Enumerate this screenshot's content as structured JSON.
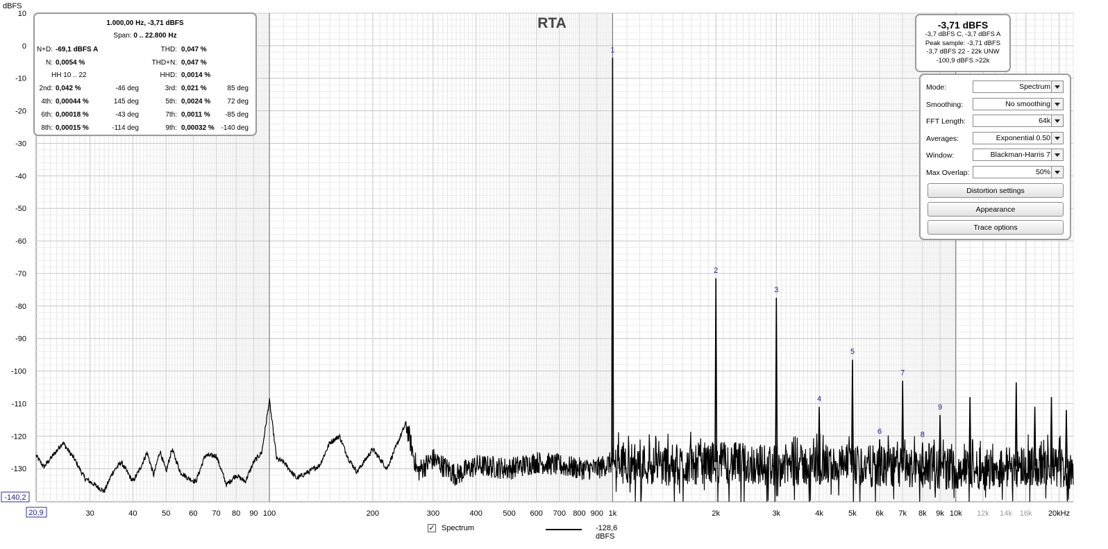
{
  "chart_data": {
    "type": "line",
    "title": "RTA",
    "ylabel": "dBFS",
    "xlabel": "",
    "x_scale": "log",
    "xlim": [
      20.9,
      22000
    ],
    "ylim": [
      -140.2,
      10
    ],
    "x_tick_labels": [
      {
        "v": 30,
        "t": "30"
      },
      {
        "v": 40,
        "t": "40"
      },
      {
        "v": 50,
        "t": "50"
      },
      {
        "v": 60,
        "t": "60"
      },
      {
        "v": 70,
        "t": "70"
      },
      {
        "v": 80,
        "t": "80"
      },
      {
        "v": 90,
        "t": "90"
      },
      {
        "v": 100,
        "t": "100"
      },
      {
        "v": 200,
        "t": "200"
      },
      {
        "v": 300,
        "t": "300"
      },
      {
        "v": 400,
        "t": "400"
      },
      {
        "v": 500,
        "t": "500"
      },
      {
        "v": 600,
        "t": "600"
      },
      {
        "v": 700,
        "t": "700"
      },
      {
        "v": 800,
        "t": "800"
      },
      {
        "v": 900,
        "t": "900"
      },
      {
        "v": 1000,
        "t": "1k"
      },
      {
        "v": 2000,
        "t": "2k"
      },
      {
        "v": 3000,
        "t": "3k"
      },
      {
        "v": 4000,
        "t": "4k"
      },
      {
        "v": 5000,
        "t": "5k"
      },
      {
        "v": 6000,
        "t": "6k"
      },
      {
        "v": 7000,
        "t": "7k"
      },
      {
        "v": 8000,
        "t": "8k"
      },
      {
        "v": 9000,
        "t": "9k"
      },
      {
        "v": 10000,
        "t": "10k"
      },
      {
        "v": 12000,
        "t": "12k",
        "muted": true
      },
      {
        "v": 14000,
        "t": "14k",
        "muted": true
      },
      {
        "v": 16000,
        "t": "16k",
        "muted": true
      },
      {
        "v": 20000,
        "t": "20kHz"
      }
    ],
    "x_min_label": "20,9",
    "y_ticks": [
      10,
      0,
      -10,
      -20,
      -30,
      -40,
      -50,
      -60,
      -70,
      -80,
      -90,
      -100,
      -110,
      -120,
      -130
    ],
    "y_min_label": "-140,2",
    "series": [
      {
        "name": "Spectrum",
        "color": "#000000",
        "noise_floor_points": [
          [
            20.9,
            -126
          ],
          [
            22,
            -129.5
          ],
          [
            23,
            -127
          ],
          [
            25,
            -122
          ],
          [
            27,
            -127
          ],
          [
            29,
            -133
          ],
          [
            31,
            -135
          ],
          [
            33,
            -137
          ],
          [
            35,
            -131
          ],
          [
            37,
            -128
          ],
          [
            40,
            -134
          ],
          [
            42,
            -130
          ],
          [
            44,
            -125
          ],
          [
            46,
            -132
          ],
          [
            48,
            -124.5
          ],
          [
            50,
            -131
          ],
          [
            52,
            -124
          ],
          [
            55,
            -131
          ],
          [
            58,
            -133
          ],
          [
            61,
            -134
          ],
          [
            65,
            -126
          ],
          [
            70,
            -126
          ],
          [
            75,
            -135
          ],
          [
            80,
            -132
          ],
          [
            85,
            -134
          ],
          [
            90,
            -128
          ],
          [
            95,
            -125
          ],
          [
            100,
            -109
          ],
          [
            105,
            -127
          ],
          [
            110,
            -128
          ],
          [
            120,
            -133
          ],
          [
            130,
            -131
          ],
          [
            140,
            -129
          ],
          [
            150,
            -122
          ],
          [
            160,
            -120
          ],
          [
            170,
            -127
          ],
          [
            180,
            -131
          ],
          [
            200,
            -124
          ],
          [
            220,
            -130
          ],
          [
            250,
            -116
          ],
          [
            270,
            -131
          ],
          [
            300,
            -127
          ],
          [
            350,
            -132
          ],
          [
            400,
            -129
          ],
          [
            500,
            -130
          ],
          [
            600,
            -128
          ],
          [
            700,
            -129
          ],
          [
            800,
            -130
          ],
          [
            900,
            -130
          ],
          [
            1000,
            -128
          ],
          [
            1500,
            -129
          ],
          [
            2000,
            -128
          ],
          [
            3000,
            -129
          ],
          [
            5000,
            -129
          ],
          [
            8000,
            -130
          ],
          [
            12000,
            -130
          ],
          [
            16000,
            -129
          ],
          [
            22000,
            -130
          ]
        ],
        "peaks": [
          {
            "f": 1000,
            "db": -3.71
          },
          {
            "f": 2000,
            "db": -71.5
          },
          {
            "f": 3000,
            "db": -77.5
          },
          {
            "f": 4000,
            "db": -111
          },
          {
            "f": 5000,
            "db": -96.5
          },
          {
            "f": 6000,
            "db": -121
          },
          {
            "f": 7000,
            "db": -103
          },
          {
            "f": 8000,
            "db": -122
          },
          {
            "f": 9000,
            "db": -113.5
          },
          {
            "f": 11000,
            "db": -108
          },
          {
            "f": 15000,
            "db": -103.5
          },
          {
            "f": 17000,
            "db": -111
          },
          {
            "f": 19000,
            "db": -108
          },
          {
            "f": 21000,
            "db": -112
          }
        ]
      }
    ],
    "harmonic_markers": [
      {
        "label": "1",
        "f": 1000,
        "db": -3.71
      },
      {
        "label": "2",
        "f": 2000,
        "db": -71.5
      },
      {
        "label": "3",
        "f": 3000,
        "db": -77.5
      },
      {
        "label": "4",
        "f": 4000,
        "db": -111
      },
      {
        "label": "5",
        "f": 5000,
        "db": -96.5
      },
      {
        "label": "6",
        "f": 6000,
        "db": -121
      },
      {
        "label": "7",
        "f": 7000,
        "db": -103
      },
      {
        "label": "8",
        "f": 8000,
        "db": -122
      },
      {
        "label": "9",
        "f": 9000,
        "db": -113.5
      }
    ],
    "grid": true,
    "legend_position": "bottom-center"
  },
  "distortion_panel": {
    "fundamental": "1.000,00 Hz, -3,71 dBFS",
    "span_label": "Span:",
    "span_value": "0 .. 22.800 Hz",
    "nd_label": "N+D:",
    "nd_value": "-69,1 dBFS A",
    "thd_label": "THD:",
    "thd_value": "0,047 %",
    "n_label": "N:",
    "n_value": "0,0054 %",
    "thdn_label": "THD+N:",
    "thdn_value": "0,047 %",
    "hh_label": "HH 10 .. 22",
    "hhd_label": "HHD:",
    "hhd_value": "0,0014 %",
    "harmonics": [
      {
        "l_label": "2nd:",
        "l_value": "0,042 %",
        "l_phase": "-46 deg",
        "r_label": "3rd:",
        "r_value": "0,021 %",
        "r_phase": "85 deg"
      },
      {
        "l_label": "4th:",
        "l_value": "0,00044 %",
        "l_phase": "145 deg",
        "r_label": "5th:",
        "r_value": "0,0024 %",
        "r_phase": "72 deg"
      },
      {
        "l_label": "6th:",
        "l_value": "0,00018 %",
        "l_phase": "-43 deg",
        "r_label": "7th:",
        "r_value": "0,0011 %",
        "r_phase": "-85 deg"
      },
      {
        "l_label": "8th:",
        "l_value": "0,00015 %",
        "l_phase": "-114 deg",
        "r_label": "9th:",
        "r_value": "0,00032 %",
        "r_phase": "-140 deg"
      }
    ]
  },
  "level_panel": {
    "main": "-3,71 dBFS",
    "line1": "-3,7 dBFS C, -3,7 dBFS A",
    "line2": "Peak sample: -3,71 dBFS",
    "line3": "-3,7 dBFS 22 - 22k UNW",
    "line4": "-100,9 dBFS >22k"
  },
  "controls": {
    "rows": [
      {
        "label": "Mode:",
        "value": "Spectrum"
      },
      {
        "label": "Smoothing:",
        "value": "No  smoothing"
      },
      {
        "label": "FFT Length:",
        "value": "64k"
      },
      {
        "label": "Averages:",
        "value": "Exponential 0.50"
      },
      {
        "label": "Window:",
        "value": "Blackman-Harris 7"
      },
      {
        "label": "Max Overlap:",
        "value": "50%"
      }
    ],
    "buttons": [
      "Distortion settings",
      "Appearance",
      "Trace options"
    ]
  },
  "legend": {
    "checked": "✓",
    "label": "Spectrum",
    "value": "-128,6 dBFS"
  }
}
